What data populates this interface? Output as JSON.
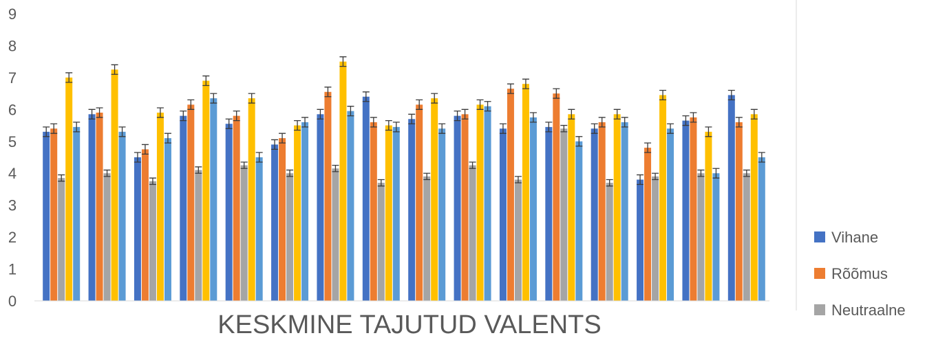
{
  "chart_data": {
    "type": "bar",
    "title": "",
    "xlabel": "KESKMINE TAJUTUD VALENTS",
    "ylabel": "",
    "ylim": [
      0,
      9
    ],
    "yticks": [
      0,
      1,
      2,
      3,
      4,
      5,
      6,
      7,
      8,
      9
    ],
    "grid": false,
    "legend_position": "right",
    "series": [
      {
        "name": "Vihane",
        "color": "#4472C4",
        "values": [
          5.3,
          5.85,
          4.5,
          5.8,
          5.55,
          4.9,
          5.85,
          6.4,
          5.7,
          5.8,
          5.4,
          5.45,
          5.4,
          3.8,
          5.65,
          6.45
        ],
        "errors": [
          0.15,
          0.15,
          0.15,
          0.15,
          0.15,
          0.15,
          0.15,
          0.15,
          0.15,
          0.15,
          0.15,
          0.15,
          0.15,
          0.15,
          0.15,
          0.15
        ]
      },
      {
        "name": "Rõõmus",
        "color": "#ED7D31",
        "values": [
          5.4,
          5.9,
          4.75,
          6.15,
          5.8,
          5.1,
          6.55,
          5.6,
          6.15,
          5.85,
          6.65,
          6.5,
          5.6,
          4.8,
          5.75,
          5.6
        ],
        "errors": [
          0.15,
          0.15,
          0.15,
          0.15,
          0.15,
          0.15,
          0.15,
          0.15,
          0.15,
          0.15,
          0.15,
          0.15,
          0.15,
          0.15,
          0.15,
          0.15
        ]
      },
      {
        "name": "Neutraalne",
        "color": "#A5A5A5",
        "values": [
          3.85,
          4.0,
          3.75,
          4.1,
          4.25,
          4.0,
          4.15,
          3.7,
          3.9,
          4.25,
          3.8,
          5.4,
          3.7,
          3.9,
          4.0,
          4.0
        ],
        "errors": [
          0.1,
          0.1,
          0.1,
          0.1,
          0.1,
          0.1,
          0.1,
          0.1,
          0.1,
          0.1,
          0.1,
          0.1,
          0.1,
          0.1,
          0.1,
          0.1
        ]
      },
      {
        "name": "",
        "color": "#FFC000",
        "values": [
          7.0,
          7.25,
          5.9,
          6.9,
          6.35,
          5.5,
          7.5,
          5.5,
          6.35,
          6.15,
          6.8,
          5.85,
          5.85,
          6.45,
          5.3,
          5.85
        ],
        "errors": [
          0.15,
          0.15,
          0.15,
          0.15,
          0.15,
          0.15,
          0.15,
          0.15,
          0.15,
          0.15,
          0.15,
          0.15,
          0.15,
          0.15,
          0.15,
          0.15
        ]
      },
      {
        "name": "",
        "color": "#5B9BD5",
        "values": [
          5.45,
          5.3,
          5.1,
          6.35,
          4.5,
          5.6,
          5.95,
          5.45,
          5.4,
          6.1,
          5.75,
          5.0,
          5.6,
          5.4,
          4.0,
          4.5
        ],
        "errors": [
          0.15,
          0.15,
          0.15,
          0.15,
          0.15,
          0.15,
          0.15,
          0.15,
          0.15,
          0.15,
          0.15,
          0.15,
          0.15,
          0.15,
          0.15,
          0.15
        ]
      }
    ]
  }
}
